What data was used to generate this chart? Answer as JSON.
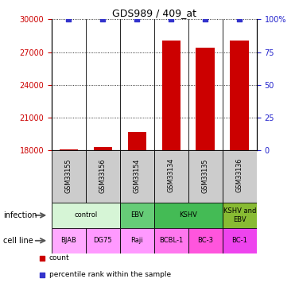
{
  "title": "GDS989 / 409_at",
  "samples": [
    "GSM33155",
    "GSM33156",
    "GSM33154",
    "GSM33134",
    "GSM33135",
    "GSM33136"
  ],
  "counts": [
    18080,
    18350,
    19700,
    28100,
    27400,
    28100
  ],
  "percentile_ranks": [
    100,
    100,
    100,
    100,
    100,
    100
  ],
  "ylim_left": [
    18000,
    30000
  ],
  "ylim_right": [
    0,
    100
  ],
  "yticks_left": [
    18000,
    21000,
    24000,
    27000,
    30000
  ],
  "yticks_right": [
    0,
    25,
    50,
    75,
    100
  ],
  "ytick_labels_left": [
    "18000",
    "21000",
    "24000",
    "27000",
    "30000"
  ],
  "ytick_labels_right": [
    "0",
    "25",
    "50",
    "75",
    "100%"
  ],
  "bar_color": "#cc0000",
  "dot_color": "#3333cc",
  "bar_width": 0.55,
  "infection_groups": [
    {
      "label": "control",
      "span": [
        0,
        2
      ],
      "color": "#d6f5d6"
    },
    {
      "label": "EBV",
      "span": [
        2,
        3
      ],
      "color": "#66cc77"
    },
    {
      "label": "KSHV",
      "span": [
        3,
        5
      ],
      "color": "#44bb55"
    },
    {
      "label": "KSHV and\nEBV",
      "span": [
        5,
        6
      ],
      "color": "#88bb33"
    }
  ],
  "cell_lines": [
    {
      "label": "BJAB",
      "span": [
        0,
        1
      ],
      "color": "#ffaaff"
    },
    {
      "label": "DG75",
      "span": [
        1,
        2
      ],
      "color": "#ff99ff"
    },
    {
      "label": "Raji",
      "span": [
        2,
        3
      ],
      "color": "#ff99ff"
    },
    {
      "label": "BCBL-1",
      "span": [
        3,
        4
      ],
      "color": "#ff77ee"
    },
    {
      "label": "BC-3",
      "span": [
        4,
        5
      ],
      "color": "#ff55dd"
    },
    {
      "label": "BC-1",
      "span": [
        5,
        6
      ],
      "color": "#ee44ee"
    }
  ],
  "left_color": "#cc0000",
  "right_color": "#2222cc",
  "title_color": "#000000",
  "sample_box_color": "#cccccc",
  "legend_items": [
    {
      "label": "count",
      "color": "#cc0000"
    },
    {
      "label": "percentile rank within the sample",
      "color": "#3333cc"
    }
  ],
  "row_label_infection": "infection",
  "row_label_cell": "cell line"
}
